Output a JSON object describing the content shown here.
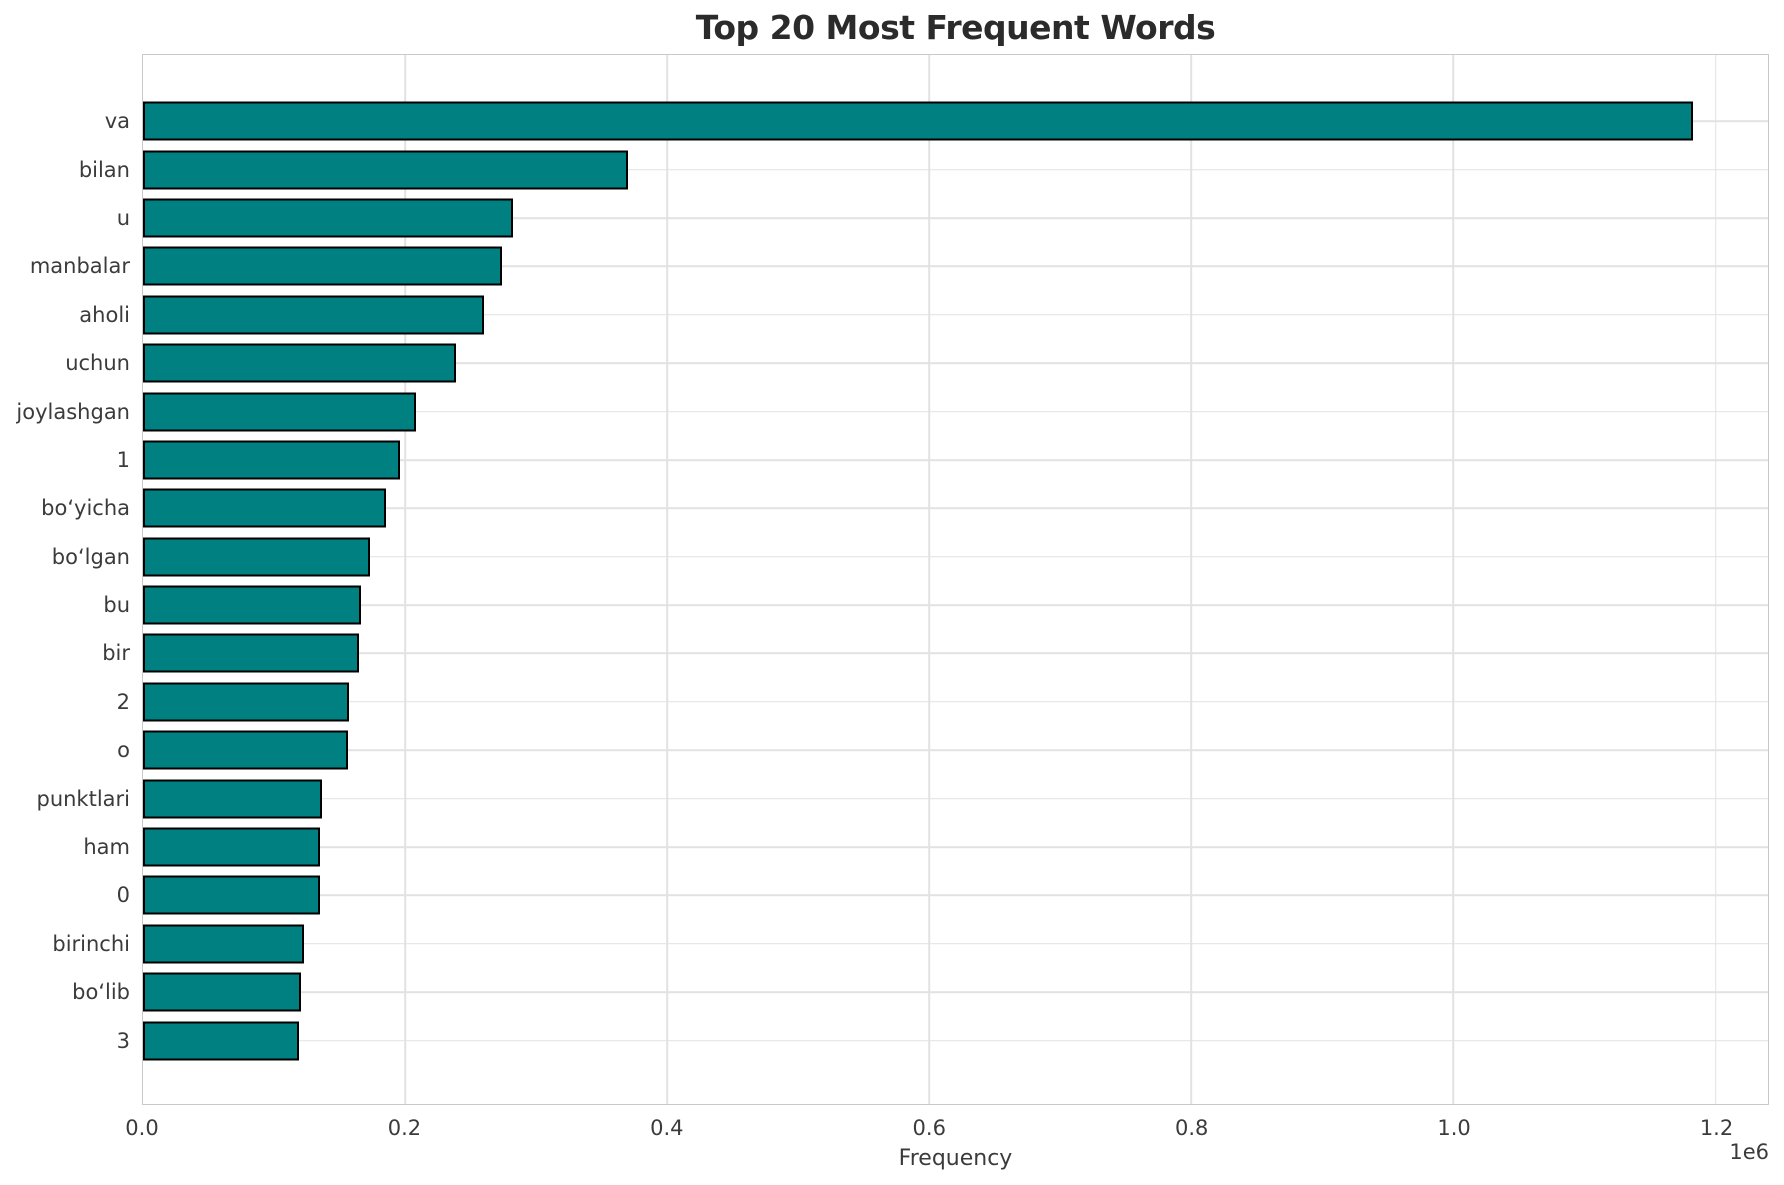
{
  "title": {
    "text": "Top 20 Most Frequent Words"
  },
  "axes": {
    "xlabel": "Frequency",
    "offset_label": "1e6"
  },
  "colors": {
    "bar_fill": "#008081",
    "bar_edge": "#000000",
    "grid": "#e2e2e2",
    "spine": "#c9c9c9",
    "title_text": "#2b2b2b",
    "tick_text": "#3b3b3b"
  },
  "chart_data": {
    "type": "bar",
    "orientation": "horizontal",
    "title": "Top 20 Most Frequent Words",
    "xlabel": "Frequency",
    "ylabel": "",
    "x_offset_label": "1e6",
    "xlim": [
      0,
      1240000
    ],
    "x_ticks": [
      0,
      200000,
      400000,
      600000,
      800000,
      1000000,
      1200000
    ],
    "x_tick_labels": [
      "0.0",
      "0.2",
      "0.4",
      "0.6",
      "0.8",
      "1.0",
      "1.2"
    ],
    "grid": true,
    "legend_position": "none",
    "categories": [
      "va",
      "bilan",
      "u",
      "manbalar",
      "aholi",
      "uchun",
      "joylashgan",
      "1",
      "bo‘yicha",
      "bo‘lgan",
      "bu",
      "bir",
      "2",
      "o",
      "punktlari",
      "ham",
      "0",
      "birinchi",
      "bo‘lib",
      "3"
    ],
    "values": [
      1180000,
      367000,
      279000,
      271000,
      257000,
      236000,
      205000,
      193000,
      182000,
      170000,
      163000,
      162000,
      154000,
      153000,
      133500,
      132300,
      132200,
      120000,
      117500,
      116000
    ]
  }
}
